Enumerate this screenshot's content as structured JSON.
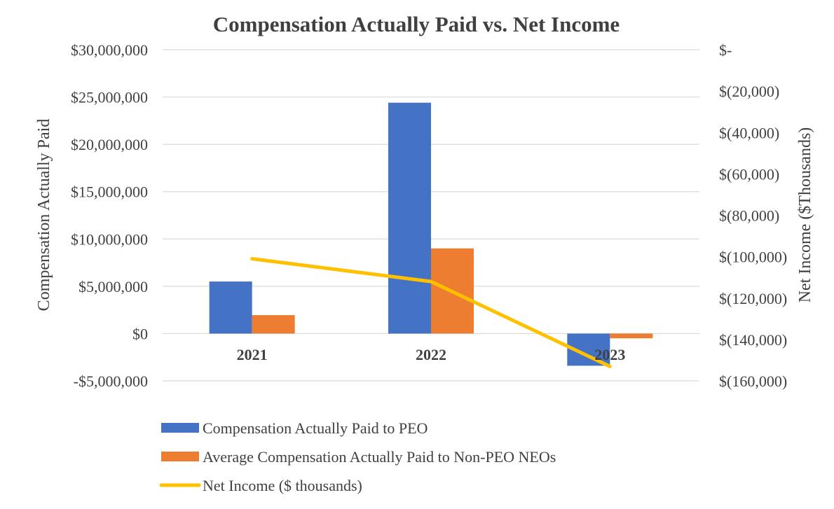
{
  "chart_data": {
    "type": "bar",
    "title": "Compensation Actually Paid vs. Net Income",
    "categories": [
      "2021",
      "2022",
      "2023"
    ],
    "series": [
      {
        "name": "Compensation Actually Paid to PEO",
        "type": "bar",
        "axis": "left",
        "color": "#4472C4",
        "values": [
          5500000,
          24400000,
          -3400000
        ]
      },
      {
        "name": "Average Compensation Actually Paid to Non-PEO NEOs",
        "type": "bar",
        "axis": "left",
        "color": "#ED7D31",
        "values": [
          1950000,
          9000000,
          -500000
        ]
      },
      {
        "name": "Net Income ($ thousands)",
        "type": "line",
        "axis": "right",
        "color": "#FFC000",
        "values": [
          -101000,
          -112000,
          -153000
        ]
      }
    ],
    "ylabel": "Compensation Actually Paid",
    "ylabel_right": "Net Income ($Thousands)",
    "ylim": [
      -5000000,
      30000000
    ],
    "ylim_right": [
      -160000,
      0
    ],
    "yticks": [
      30000000,
      25000000,
      20000000,
      15000000,
      10000000,
      5000000,
      0,
      -5000000
    ],
    "ytick_labels": [
      "$30,000,000",
      "$25,000,000",
      "$20,000,000",
      "$15,000,000",
      "$10,000,000",
      "$5,000,000",
      "$0",
      "-$5,000,000"
    ],
    "yticks_right": [
      0,
      -20000,
      -40000,
      -60000,
      -80000,
      -100000,
      -120000,
      -140000,
      -160000
    ],
    "ytick_labels_right": [
      "$-",
      "$(20,000)",
      "$(40,000)",
      "$(60,000)",
      "$(80,000)",
      "$(100,000)",
      "$(120,000)",
      "$(140,000)",
      "$(160,000)"
    ],
    "grid": true,
    "legend_position": "bottom-left"
  }
}
